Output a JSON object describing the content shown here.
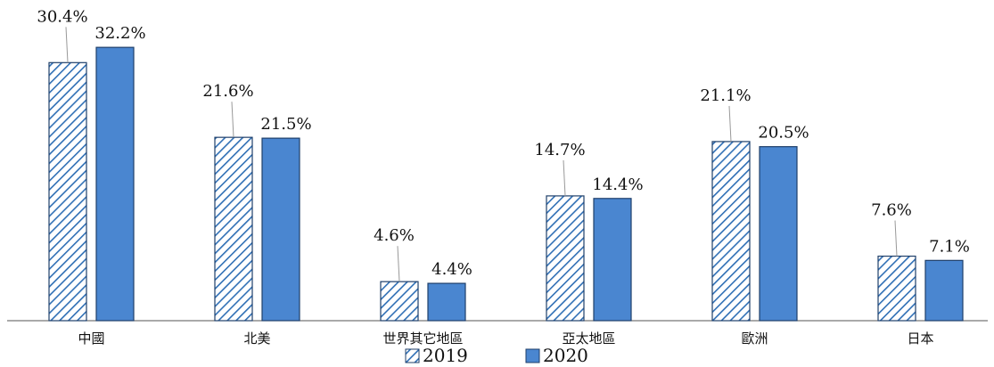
{
  "chart_data": {
    "type": "bar",
    "title": "",
    "xlabel": "",
    "ylabel": "",
    "ylim": [
      0,
      34
    ],
    "grid": false,
    "legend_position": "bottom",
    "categories": [
      "中國",
      "北美",
      "世界其它地區",
      "亞太地區",
      "歐洲",
      "日本"
    ],
    "series": [
      {
        "name": "2019",
        "values": [
          30.4,
          21.6,
          4.6,
          14.7,
          21.1,
          7.6
        ],
        "labels": [
          "30.4%",
          "21.6%",
          "4.6%",
          "14.7%",
          "21.1%",
          "7.6%"
        ],
        "pattern": "hatched",
        "color": "#2f6fb5"
      },
      {
        "name": "2020",
        "values": [
          32.2,
          21.5,
          4.4,
          14.4,
          20.5,
          7.1
        ],
        "labels": [
          "32.2%",
          "21.5%",
          "4.4%",
          "14.4%",
          "20.5%",
          "7.1%"
        ],
        "pattern": "solid",
        "color": "#4a86d0"
      }
    ]
  }
}
